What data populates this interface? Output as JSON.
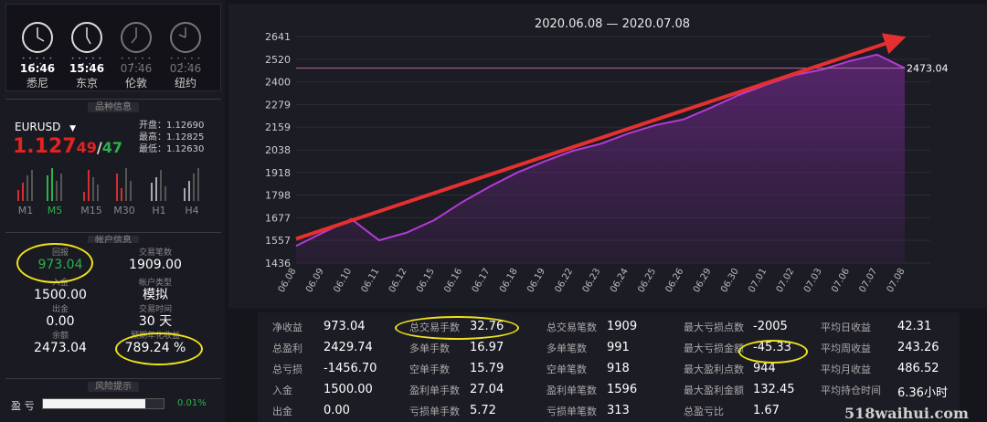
{
  "clocks": [
    {
      "time": "16:46",
      "city": "悉尼",
      "active": true
    },
    {
      "time": "15:46",
      "city": "东京",
      "active": true
    },
    {
      "time": "07:46",
      "city": "伦敦",
      "active": false
    },
    {
      "time": "02:46",
      "city": "纽约",
      "active": false
    }
  ],
  "symbol_section": {
    "heading": "品种信息",
    "symbol": "EURUSD",
    "price_main": "1.127",
    "price_bid": "49",
    "price_sep": "/",
    "price_ask": "47",
    "open_label": "开盘：",
    "open": "1.12690",
    "high_label": "最高：",
    "high": "1.12825",
    "low_label": "最低：",
    "low": "1.12630",
    "timeframes": [
      "M1",
      "M5",
      "M15",
      "M30",
      "H1",
      "H4"
    ]
  },
  "account_section": {
    "heading": "帐户信息",
    "return_label": "回报",
    "return_value": "973.04",
    "trades_label": "交易笔数",
    "trades_value": "1909.00",
    "deposit_label": "入金",
    "deposit_value": "1500.00",
    "account_type_label": "帐户类型",
    "account_type_value": "模拟",
    "withdraw_label": "出金",
    "withdraw_value": "0.00",
    "trade_time_label": "交易时间",
    "trade_time_value": "30 天",
    "balance_label": "余额",
    "balance_value": "2473.04",
    "annual_label": "预期年化收益",
    "annual_value": "789.24 %"
  },
  "risk_section": {
    "heading": "风险提示",
    "profit_label": "盈  亏",
    "profit_pct": "0.01%",
    "profit_fraction": 0.85
  },
  "chart_data": {
    "type": "area",
    "title": "2020.06.08 — 2020.07.08",
    "categories": [
      "06.08",
      "06.09",
      "06.10",
      "06.11",
      "06.12",
      "06.15",
      "06.16",
      "06.17",
      "06.18",
      "06.19",
      "06.22",
      "06.23",
      "06.24",
      "06.25",
      "06.26",
      "06.29",
      "06.30",
      "07.01",
      "07.02",
      "07.03",
      "07.06",
      "07.07",
      "07.08"
    ],
    "values": [
      1527,
      1600,
      1670,
      1557,
      1598,
      1665,
      1760,
      1843,
      1918,
      1978,
      2033,
      2070,
      2125,
      2170,
      2200,
      2263,
      2330,
      2385,
      2435,
      2465,
      2510,
      2545,
      2473
    ],
    "yticks": [
      1436,
      1557,
      1677,
      1798,
      1918,
      2038,
      2159,
      2279,
      2400,
      2520,
      2641
    ],
    "ylim": [
      1436,
      2641
    ],
    "reference_value": 2473,
    "end_label": "2473.04",
    "grid": true,
    "colors": {
      "line": "#b43ad8",
      "fill": "#5a2570",
      "arrow": "#e53030",
      "ref": "#b86a9a"
    }
  },
  "stats": [
    [
      {
        "k": "净收益",
        "v": "973.04"
      },
      {
        "k": "总盈利",
        "v": "2429.74"
      },
      {
        "k": "总亏损",
        "v": "-1456.70"
      },
      {
        "k": "入金",
        "v": "1500.00"
      },
      {
        "k": "出金",
        "v": "0.00"
      }
    ],
    [
      {
        "k": "总交易手数",
        "v": "32.76"
      },
      {
        "k": "多单手数",
        "v": "16.97"
      },
      {
        "k": "空单手数",
        "v": "15.79"
      },
      {
        "k": "盈利单手数",
        "v": "27.04"
      },
      {
        "k": "亏损单手数",
        "v": "5.72"
      }
    ],
    [
      {
        "k": "总交易笔数",
        "v": "1909"
      },
      {
        "k": "多单笔数",
        "v": "991"
      },
      {
        "k": "空单笔数",
        "v": "918"
      },
      {
        "k": "盈利单笔数",
        "v": "1596"
      },
      {
        "k": "亏损单笔数",
        "v": "313"
      }
    ],
    [
      {
        "k": "最大亏损点数",
        "v": "-2005"
      },
      {
        "k": "最大亏损金额",
        "v": "-45.33"
      },
      {
        "k": "最大盈利点数",
        "v": "944"
      },
      {
        "k": "最大盈利金额",
        "v": "132.45"
      },
      {
        "k": "总盈亏比",
        "v": "1.67"
      }
    ],
    [
      {
        "k": "平均日收益",
        "v": "42.31"
      },
      {
        "k": "平均周收益",
        "v": "243.26"
      },
      {
        "k": "平均月收益",
        "v": "486.52"
      },
      {
        "k": "平均持仓时间",
        "v": "6.36小时"
      }
    ]
  ],
  "watermark": "518waihui.com"
}
